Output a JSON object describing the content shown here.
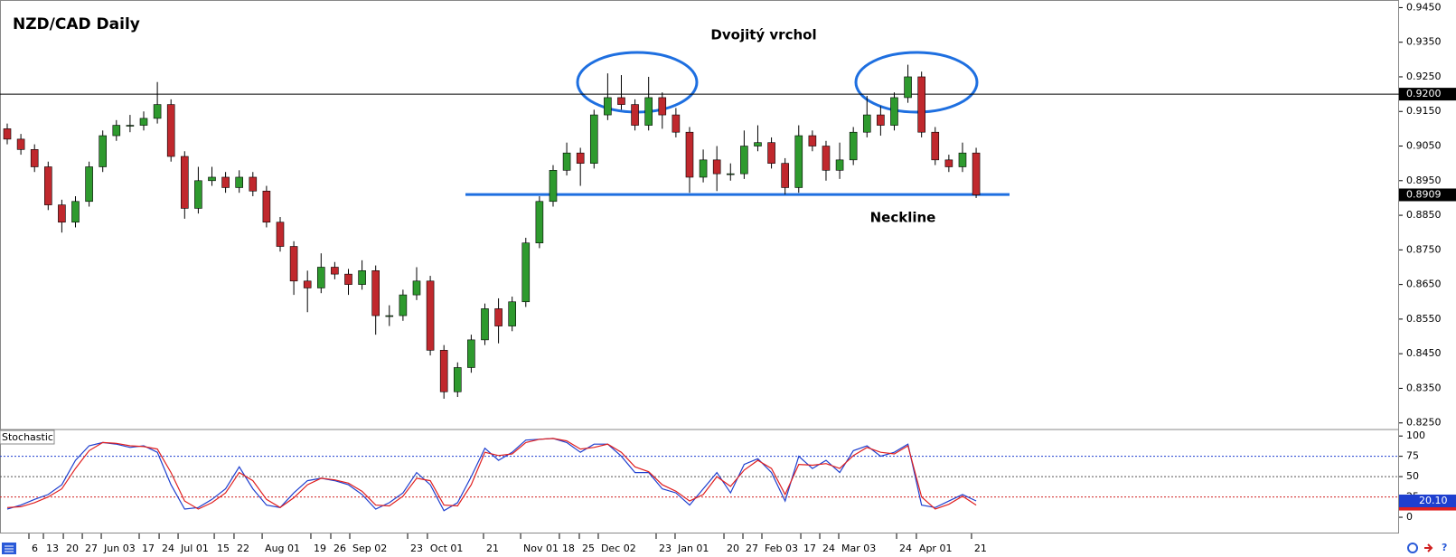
{
  "chart_data": {
    "type": "candlestick",
    "title": "NZD/CAD Daily",
    "colors": {
      "up": "#2e9a2e",
      "down": "#c0282d",
      "wick": "#000000",
      "hline": "#000000",
      "neckline": "#1e6fe0",
      "ellipse": "#1e6fe0"
    },
    "open": [
      0.91,
      0.907,
      0.904,
      0.899,
      0.888,
      0.883,
      0.889,
      0.899,
      0.908,
      0.911,
      0.911,
      0.913,
      0.917,
      0.902,
      0.887,
      0.895,
      0.896,
      0.893,
      0.896,
      0.892,
      0.883,
      0.876,
      0.866,
      0.864,
      0.87,
      0.868,
      0.865,
      0.869,
      0.856,
      0.856,
      0.862,
      0.866,
      0.846,
      0.834,
      0.841,
      0.849,
      0.858,
      0.853,
      0.86,
      0.877,
      0.889,
      0.898,
      0.903,
      0.9,
      0.914,
      0.919,
      0.917,
      0.911,
      0.919,
      0.914,
      0.909,
      0.896,
      0.901,
      0.897,
      0.897,
      0.905,
      0.906,
      0.9,
      0.893,
      0.908,
      0.905,
      0.898,
      0.901,
      0.909,
      0.914,
      0.911,
      0.919,
      0.925,
      0.909,
      0.901,
      0.899,
      0.903
    ],
    "high": [
      0.9115,
      0.9085,
      0.9055,
      0.9005,
      0.8895,
      0.8905,
      0.9005,
      0.9095,
      0.9125,
      0.914,
      0.915,
      0.9235,
      0.9185,
      0.9035,
      0.899,
      0.899,
      0.8975,
      0.898,
      0.8975,
      0.8935,
      0.8845,
      0.8775,
      0.869,
      0.874,
      0.8715,
      0.8695,
      0.872,
      0.8705,
      0.859,
      0.8635,
      0.87,
      0.8675,
      0.8475,
      0.8425,
      0.8505,
      0.8595,
      0.861,
      0.8615,
      0.8785,
      0.8905,
      0.8995,
      0.906,
      0.9045,
      0.9155,
      0.926,
      0.9255,
      0.9185,
      0.925,
      0.9205,
      0.916,
      0.9105,
      0.904,
      0.905,
      0.9,
      0.9095,
      0.911,
      0.9075,
      0.9015,
      0.911,
      0.9095,
      0.9065,
      0.906,
      0.9105,
      0.9195,
      0.9165,
      0.9205,
      0.9285,
      0.9265,
      0.9105,
      0.9025,
      0.906,
      0.9045
    ],
    "low": [
      0.9055,
      0.9025,
      0.8975,
      0.8865,
      0.88,
      0.8815,
      0.8875,
      0.8975,
      0.9065,
      0.909,
      0.9095,
      0.9115,
      0.9005,
      0.884,
      0.8855,
      0.8935,
      0.8915,
      0.8915,
      0.8905,
      0.8815,
      0.8745,
      0.862,
      0.857,
      0.8625,
      0.8665,
      0.862,
      0.8635,
      0.8505,
      0.853,
      0.8545,
      0.8605,
      0.8445,
      0.832,
      0.8325,
      0.8395,
      0.8475,
      0.848,
      0.8515,
      0.8585,
      0.8755,
      0.8875,
      0.8965,
      0.8935,
      0.8985,
      0.9125,
      0.9155,
      0.9095,
      0.9095,
      0.91,
      0.9075,
      0.8915,
      0.8945,
      0.892,
      0.895,
      0.8955,
      0.9035,
      0.8985,
      0.891,
      0.8915,
      0.9035,
      0.895,
      0.8955,
      0.8995,
      0.9075,
      0.908,
      0.9095,
      0.9175,
      0.9075,
      0.8995,
      0.8975,
      0.8975,
      0.89
    ],
    "close": [
      0.907,
      0.904,
      0.899,
      0.888,
      0.883,
      0.889,
      0.899,
      0.908,
      0.911,
      0.911,
      0.913,
      0.917,
      0.902,
      0.887,
      0.895,
      0.896,
      0.893,
      0.896,
      0.892,
      0.883,
      0.876,
      0.866,
      0.864,
      0.87,
      0.868,
      0.865,
      0.869,
      0.856,
      0.856,
      0.862,
      0.866,
      0.846,
      0.834,
      0.841,
      0.849,
      0.858,
      0.853,
      0.86,
      0.877,
      0.889,
      0.898,
      0.903,
      0.9,
      0.914,
      0.919,
      0.917,
      0.911,
      0.919,
      0.914,
      0.909,
      0.896,
      0.901,
      0.897,
      0.897,
      0.905,
      0.906,
      0.9,
      0.893,
      0.908,
      0.905,
      0.898,
      0.901,
      0.909,
      0.914,
      0.911,
      0.919,
      0.925,
      0.909,
      0.901,
      0.899,
      0.903,
      0.8909
    ],
    "xlim": [
      -0.53,
      101.99
    ],
    "ylim": [
      0.8231,
      0.9472
    ],
    "yticks": [
      {
        "value": 0.945,
        "label": "0.9450"
      },
      {
        "value": 0.935,
        "label": "0.9350"
      },
      {
        "value": 0.925,
        "label": "0.9250"
      },
      {
        "value": 0.915,
        "label": "0.9150"
      },
      {
        "value": 0.905,
        "label": "0.9050"
      },
      {
        "value": 0.895,
        "label": "0.8950"
      },
      {
        "value": 0.885,
        "label": "0.8850"
      },
      {
        "value": 0.875,
        "label": "0.8750"
      },
      {
        "value": 0.865,
        "label": "0.8650"
      },
      {
        "value": 0.855,
        "label": "0.8550"
      },
      {
        "value": 0.845,
        "label": "0.8450"
      },
      {
        "value": 0.835,
        "label": "0.8350"
      },
      {
        "value": 0.825,
        "label": "0.8250"
      }
    ],
    "xticks": [
      {
        "value": 1.59,
        "label": "6"
      },
      {
        "value": 2.65,
        "label": "13"
      },
      {
        "value": 4.11,
        "label": "20"
      },
      {
        "value": 5.5,
        "label": "27"
      },
      {
        "value": 6.89,
        "label": "Jun 03"
      },
      {
        "value": 9.67,
        "label": "17"
      },
      {
        "value": 11.13,
        "label": "24"
      },
      {
        "value": 12.52,
        "label": "Jul 01"
      },
      {
        "value": 15.17,
        "label": "15"
      },
      {
        "value": 16.62,
        "label": "22"
      },
      {
        "value": 18.68,
        "label": "Aug 01"
      },
      {
        "value": 22.25,
        "label": "19"
      },
      {
        "value": 23.71,
        "label": "26"
      },
      {
        "value": 25.1,
        "label": "Sep 02"
      },
      {
        "value": 29.34,
        "label": "23"
      },
      {
        "value": 30.79,
        "label": "Oct 01"
      },
      {
        "value": 34.9,
        "label": "21"
      },
      {
        "value": 37.62,
        "label": "Nov 01"
      },
      {
        "value": 40.46,
        "label": "18"
      },
      {
        "value": 41.92,
        "label": "25"
      },
      {
        "value": 43.31,
        "label": "Dec 02"
      },
      {
        "value": 47.55,
        "label": "23"
      },
      {
        "value": 48.94,
        "label": "Jan 01"
      },
      {
        "value": 52.52,
        "label": "20"
      },
      {
        "value": 53.91,
        "label": "27"
      },
      {
        "value": 55.3,
        "label": "Feb 03"
      },
      {
        "value": 58.15,
        "label": "17"
      },
      {
        "value": 59.54,
        "label": "24"
      },
      {
        "value": 60.93,
        "label": "Mar 03"
      },
      {
        "value": 65.17,
        "label": "24"
      },
      {
        "value": 66.62,
        "label": "Apr 01"
      },
      {
        "value": 70.66,
        "label": "21"
      }
    ],
    "hline": {
      "value": 0.92,
      "label": "0.9200"
    },
    "last_price": {
      "value": 0.8909,
      "label": "0.8909"
    },
    "annotations": [
      {
        "text": "Dvojitý vrchol"
      },
      {
        "text": "Neckline",
        "value": 0.891
      }
    ],
    "stochastic": {
      "name": "Stochastic",
      "ylim": [
        -20,
        108
      ],
      "yticks": [
        100,
        75,
        50,
        25,
        0
      ],
      "levels": [
        75,
        50,
        25
      ],
      "level_colors": [
        "#1e3fcf",
        "#555555",
        "#d02020"
      ],
      "series": [
        {
          "color": "#1e3fcf",
          "values": [
            10,
            15,
            22,
            28,
            40,
            70,
            88,
            92,
            90,
            86,
            88,
            80,
            40,
            10,
            12,
            22,
            35,
            62,
            35,
            15,
            12,
            30,
            45,
            48,
            45,
            40,
            28,
            10,
            18,
            30,
            55,
            40,
            8,
            18,
            50,
            85,
            70,
            80,
            95,
            96,
            97,
            92,
            80,
            90,
            90,
            75,
            55,
            55,
            35,
            30,
            15,
            35,
            55,
            30,
            65,
            72,
            55,
            20,
            75,
            60,
            70,
            55,
            82,
            88,
            75,
            80,
            90,
            15,
            12,
            20,
            28,
            20.1
          ]
        },
        {
          "color": "#e02020",
          "values": [
            12,
            13,
            18,
            25,
            35,
            60,
            82,
            92,
            91,
            88,
            87,
            84,
            55,
            20,
            10,
            18,
            30,
            55,
            45,
            22,
            12,
            24,
            40,
            48,
            46,
            42,
            32,
            15,
            14,
            26,
            48,
            45,
            15,
            14,
            40,
            80,
            76,
            78,
            92,
            96,
            97,
            94,
            84,
            86,
            90,
            80,
            62,
            56,
            40,
            32,
            20,
            28,
            50,
            38,
            58,
            70,
            60,
            28,
            65,
            64,
            66,
            60,
            76,
            86,
            80,
            78,
            88,
            25,
            10,
            16,
            26,
            15
          ]
        }
      ],
      "last": {
        "value": 20.1,
        "label": "20.10"
      }
    }
  }
}
